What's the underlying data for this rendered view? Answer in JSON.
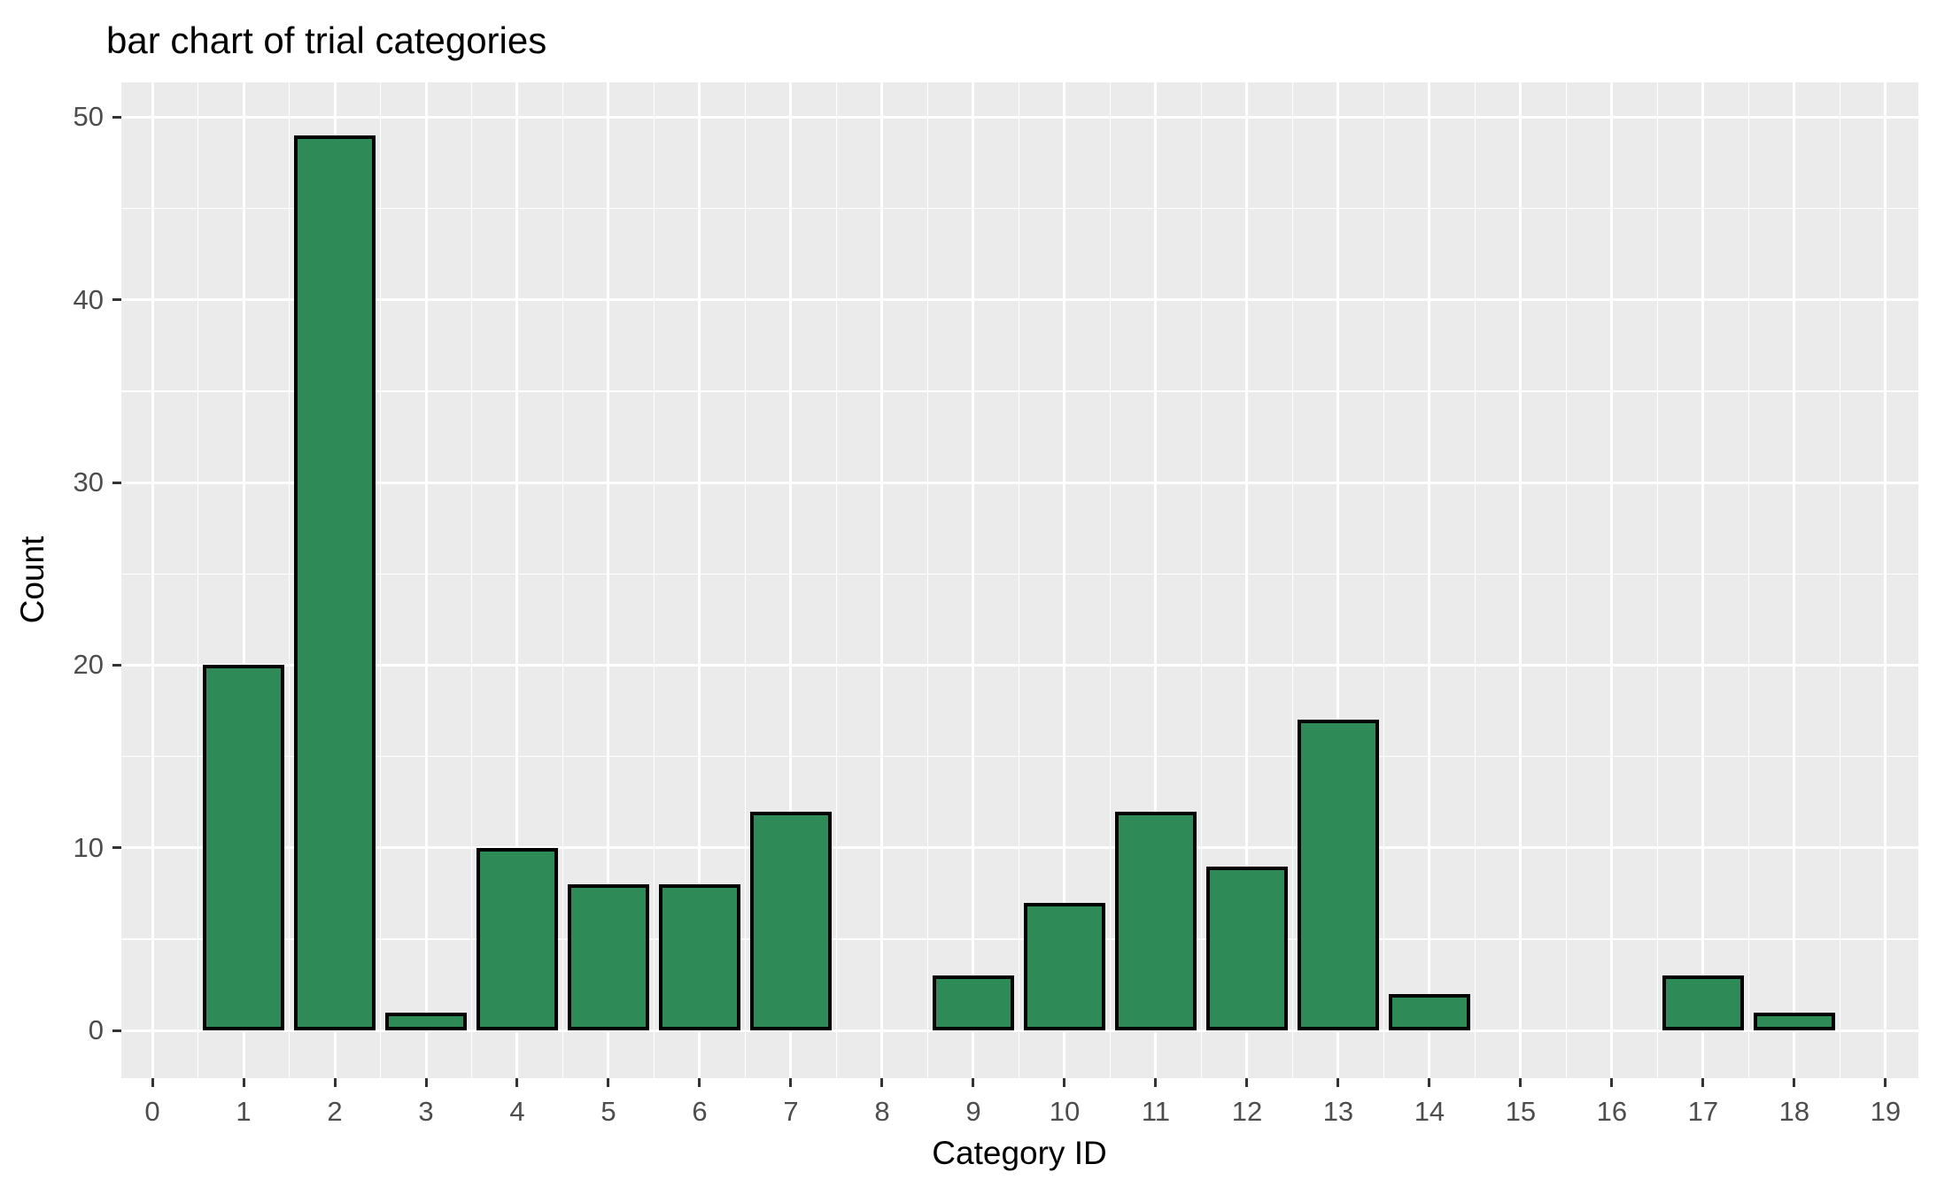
{
  "chart_data": {
    "type": "bar",
    "title": "bar chart of trial categories",
    "xlabel": "Category ID",
    "ylabel": "Count",
    "categories": [
      1,
      2,
      3,
      4,
      5,
      6,
      7,
      9,
      10,
      11,
      12,
      13,
      14,
      17,
      18
    ],
    "values": [
      20,
      49,
      1,
      10,
      8,
      8,
      12,
      3,
      7,
      12,
      9,
      17,
      2,
      3,
      1
    ],
    "x_ticks": [
      "0",
      "1",
      "2",
      "3",
      "4",
      "5",
      "6",
      "7",
      "8",
      "9",
      "10",
      "11",
      "12",
      "13",
      "14",
      "15",
      "16",
      "17",
      "18",
      "19"
    ],
    "y_ticks": [
      "0",
      "10",
      "20",
      "30",
      "40",
      "50"
    ],
    "xlim": [
      -0.34,
      19.36
    ],
    "ylim": [
      -2.6,
      51.9
    ],
    "bar_width": 0.9,
    "bar_fill": "#2e8b57",
    "bar_stroke": "#000000",
    "panel_bg": "#ebebeb",
    "grid_color": "#ffffff",
    "tick_label_color": "#4d4d4d",
    "grid": "on",
    "legend_position": "none"
  }
}
